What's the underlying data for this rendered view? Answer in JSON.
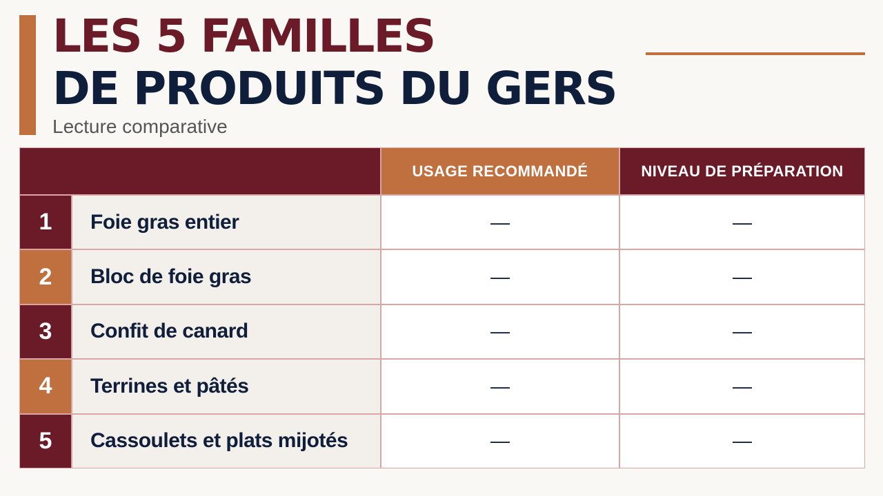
{
  "header": {
    "title_line1": "LES 5 FAMILLES",
    "title_line2": "DE PRODUITS DU GERS",
    "subtitle": "Lecture comparative"
  },
  "table": {
    "columns": [
      "USAGE RECOMMANDÉ",
      "NIVEAU DE PRÉPARATION"
    ],
    "rows": [
      {
        "number": 1,
        "name": "Foie gras entier",
        "cells": [
          "—",
          "—"
        ]
      },
      {
        "number": 2,
        "name": "Bloc de foie gras",
        "cells": [
          "—",
          "—"
        ]
      },
      {
        "number": 3,
        "name": "Confit de canard",
        "cells": [
          "—",
          "—"
        ]
      },
      {
        "number": 4,
        "name": "Terrines et pâtés",
        "cells": [
          "—",
          "—"
        ]
      },
      {
        "number": 5,
        "name": "Cassoulets et plats mijotés",
        "cells": [
          "—",
          "—"
        ]
      }
    ]
  }
}
